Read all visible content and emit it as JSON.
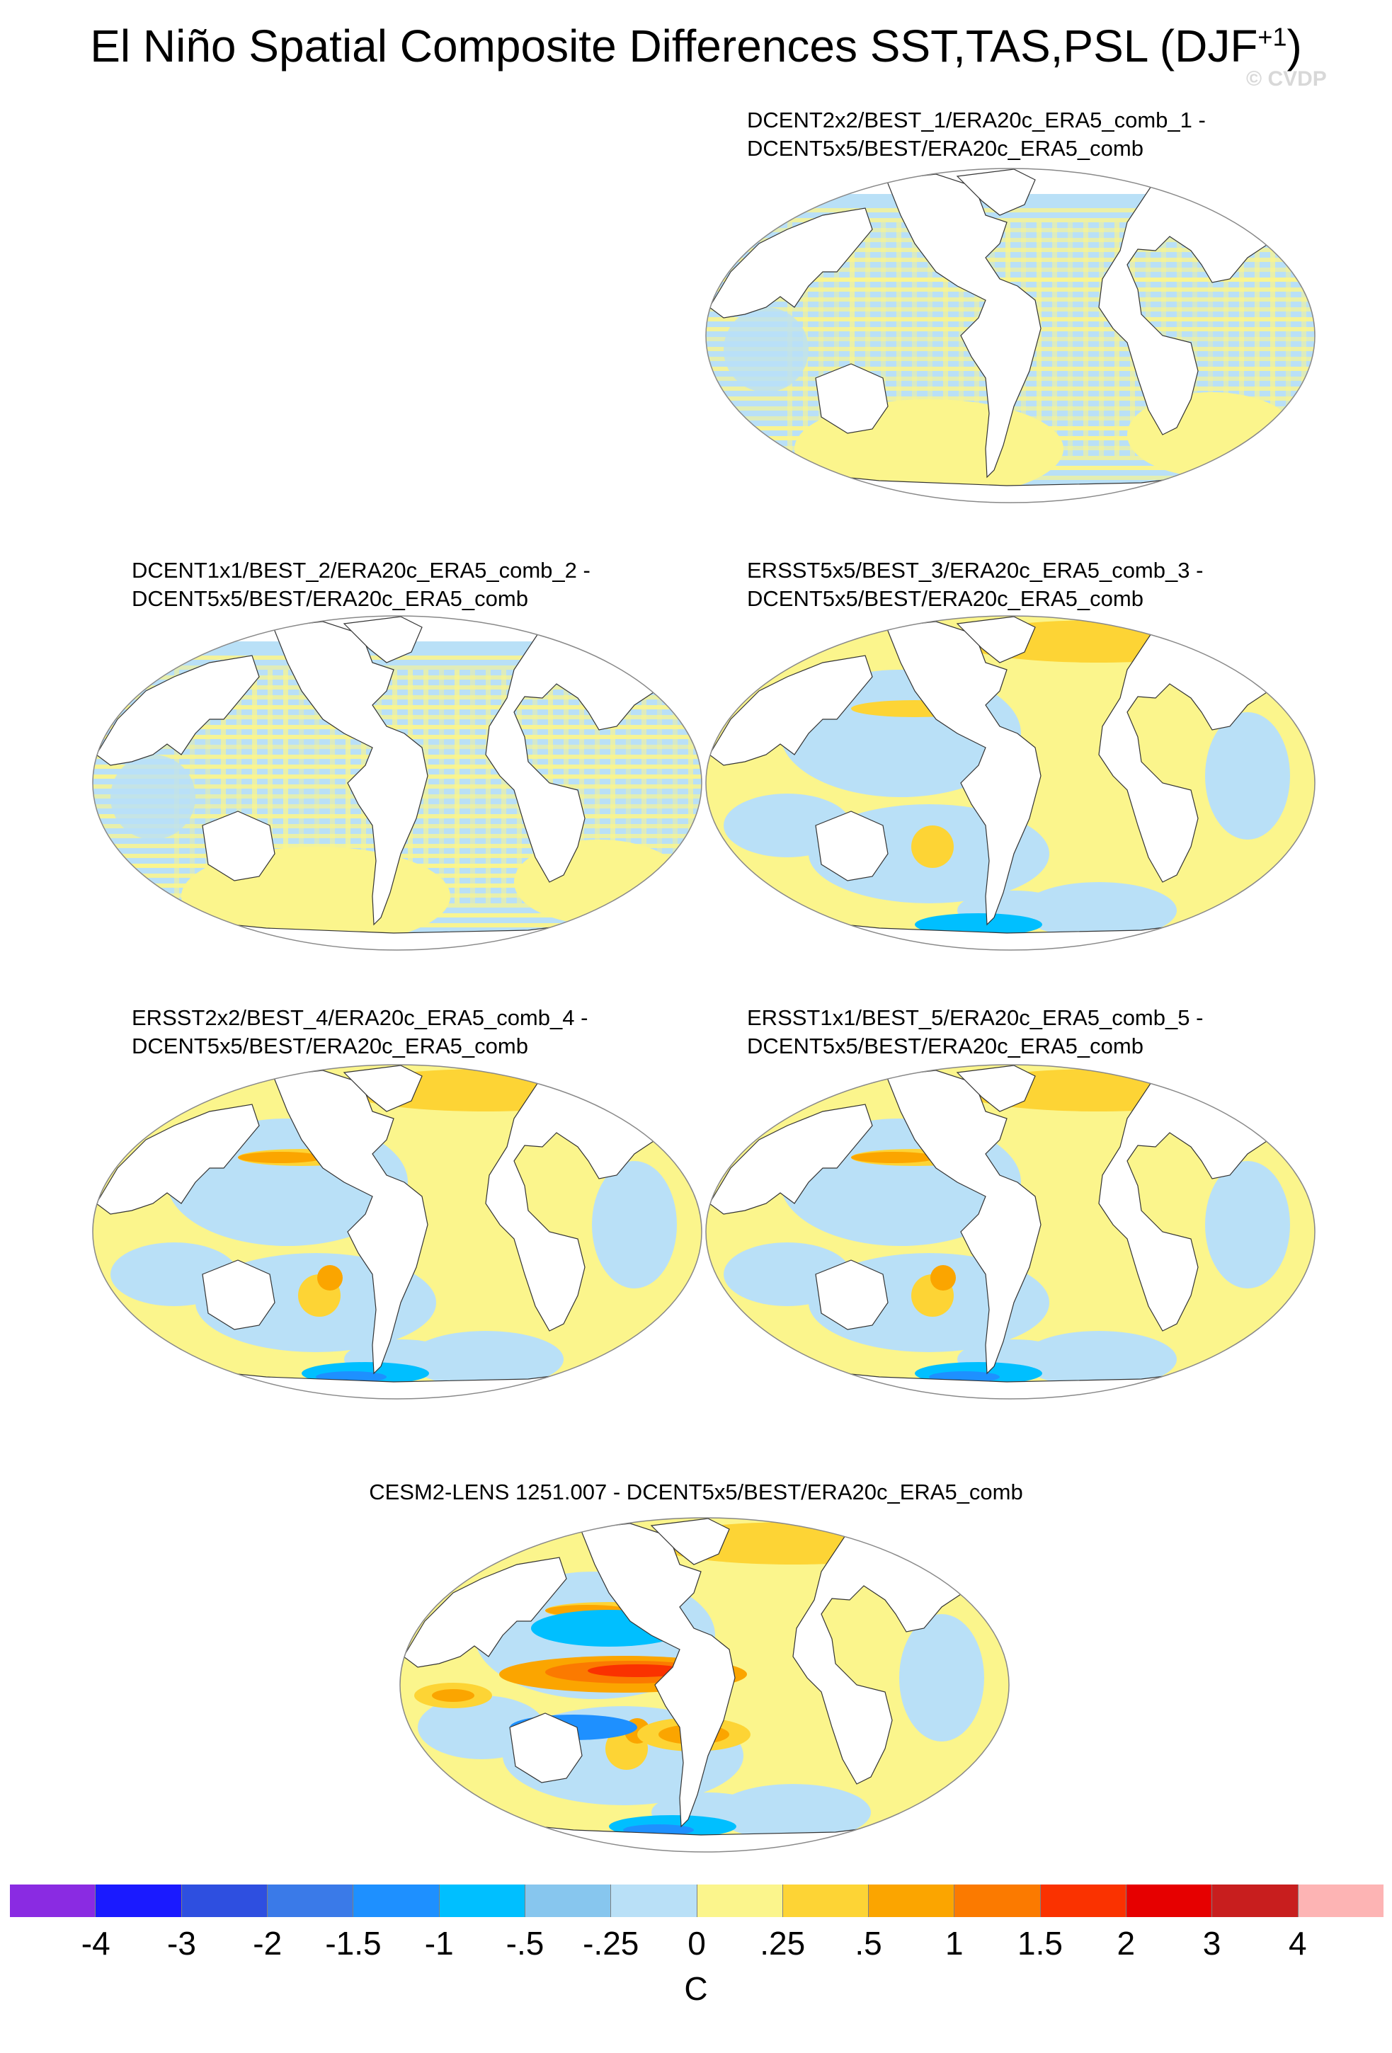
{
  "figure": {
    "title": "El Niño Spatial Composite Differences SST,TAS,PSL (DJF",
    "title_sup": "+1",
    "title_close": ")",
    "watermark": "© CVDP"
  },
  "panels": [
    {
      "title1": "DCENT2x2/BEST_1/ERA20c_ERA5_comb_1 -",
      "title2": "DCENT5x5/BEST/ERA20c_ERA5_comb",
      "style": "stripe",
      "severity": 0
    },
    {
      "title1": "DCENT1x1/BEST_2/ERA20c_ERA5_comb_2 -",
      "title2": "DCENT5x5/BEST/ERA20c_ERA5_comb",
      "style": "stripe",
      "severity": 0
    },
    {
      "title1": "ERSST5x5/BEST_3/ERA20c_ERA5_comb_3 -",
      "title2": "DCENT5x5/BEST/ERA20c_ERA5_comb",
      "style": "smooth",
      "severity": 1
    },
    {
      "title1": "ERSST2x2/BEST_4/ERA20c_ERA5_comb_4 -",
      "title2": "DCENT5x5/BEST/ERA20c_ERA5_comb",
      "style": "smooth",
      "severity": 2
    },
    {
      "title1": "ERSST1x1/BEST_5/ERA20c_ERA5_comb_5 -",
      "title2": "DCENT5x5/BEST/ERA20c_ERA5_comb",
      "style": "smooth",
      "severity": 2
    },
    {
      "title1": "CESM2-LENS 1251.007 - DCENT5x5/BEST/ERA20c_ERA5_comb",
      "title2": "",
      "style": "model",
      "severity": 3
    }
  ],
  "colorbar": {
    "units": "C",
    "labels": [
      "-4",
      "-3",
      "-2",
      "-1.5",
      "-1",
      "-.5",
      "-.25",
      "0",
      ".25",
      ".5",
      "1",
      "1.5",
      "2",
      "3",
      "4"
    ],
    "colors": [
      "#8a2be2",
      "#1a1aff",
      "#2e4fe0",
      "#3a7ae8",
      "#1e90ff",
      "#00bfff",
      "#87c6ee",
      "#b9e0f7",
      "#fbf58c",
      "#fdd435",
      "#fba500",
      "#fb7a00",
      "#fa3200",
      "#e60000",
      "#c81e1e",
      "#fdb4b4"
    ]
  }
}
